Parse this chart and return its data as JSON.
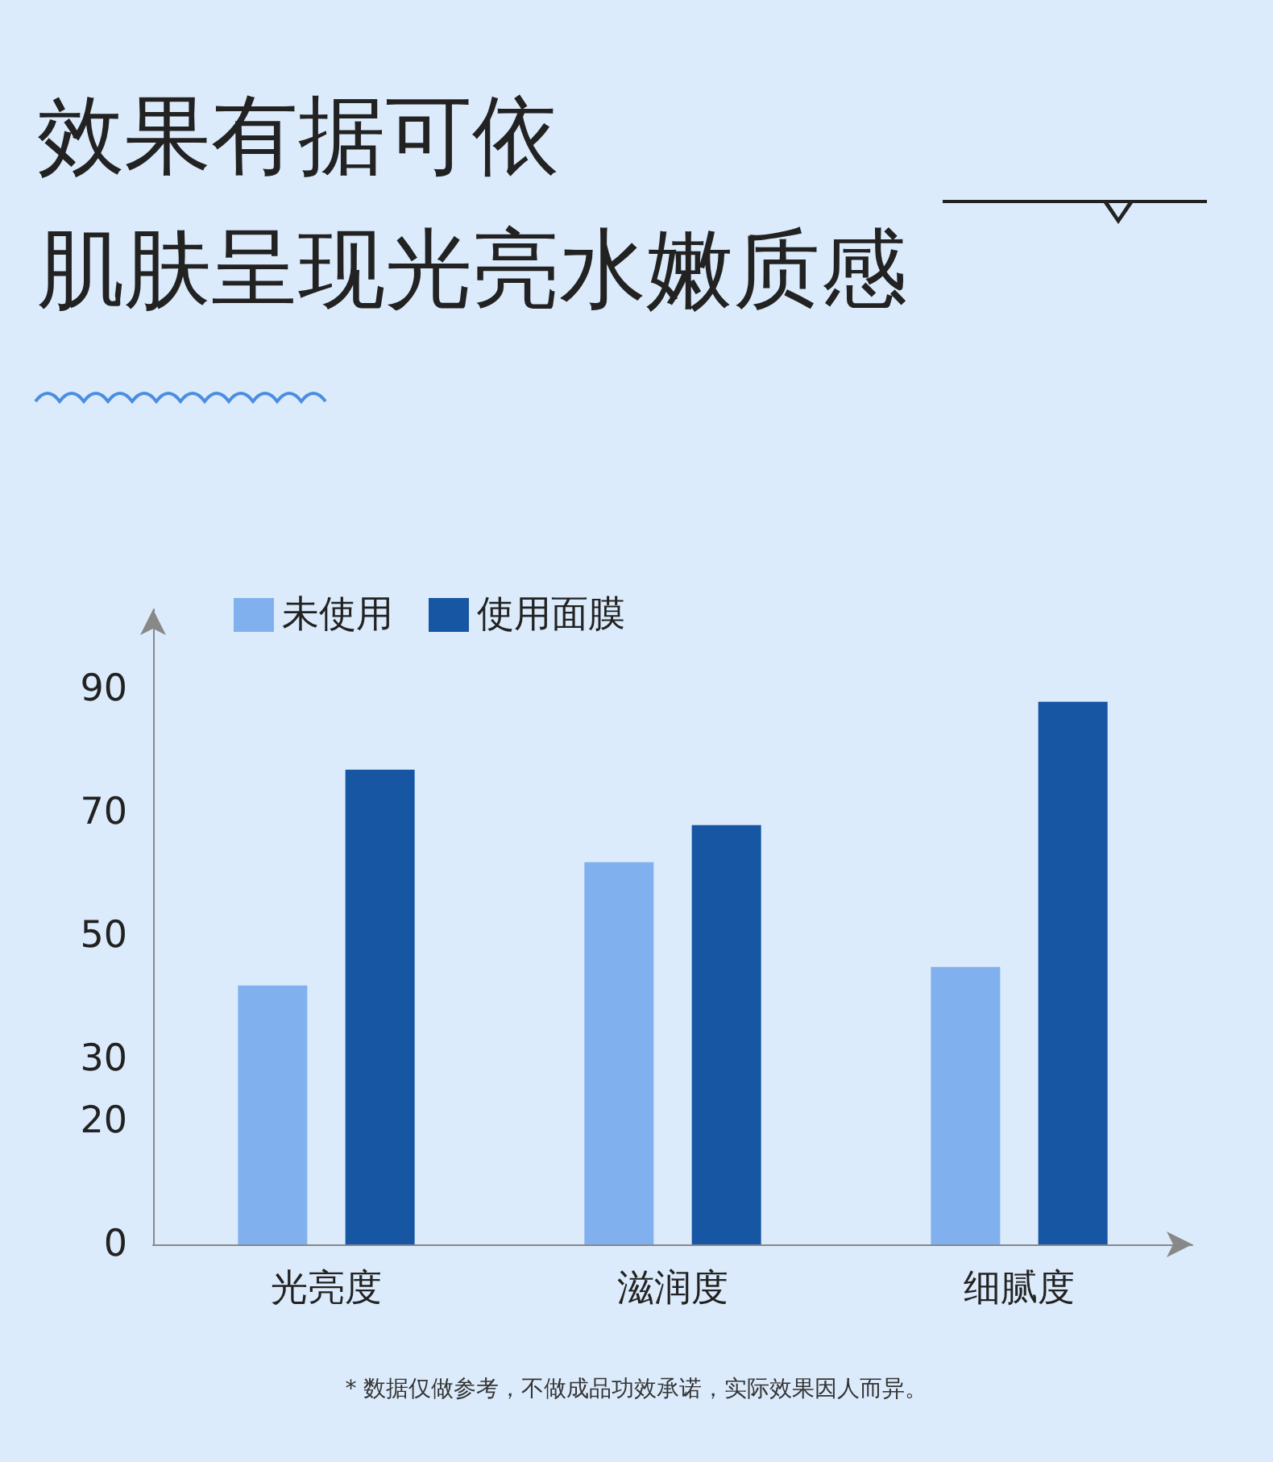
{
  "chart_data": {
    "type": "bar",
    "title": "效果有据可依",
    "subtitle": "肌肤呈现光亮水嫩质感",
    "categories": [
      "光亮度",
      "滋润度",
      "细腻度"
    ],
    "series": [
      {
        "name": "未使用",
        "color": "#80b1ee",
        "values": [
          42,
          62,
          45
        ]
      },
      {
        "name": "使用面膜",
        "color": "#1656a3",
        "values": [
          77,
          68,
          88
        ]
      }
    ],
    "ylim": [
      0,
      103
    ],
    "yticks": [
      0,
      20,
      30,
      50,
      70,
      90
    ],
    "grid": false,
    "legend": "top left",
    "annotations": [
      "* 数据仅做参考，不做成品功效承诺，实际效果因人而异。"
    ]
  }
}
